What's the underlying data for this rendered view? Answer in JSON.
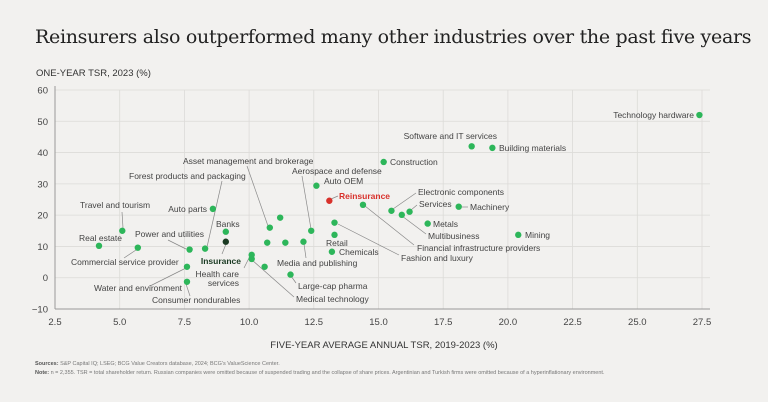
{
  "title": "Reinsurers also outperformed many other industries over the past five years",
  "footer": {
    "sources_label": "Sources:",
    "sources": "S&P Capital IQ; LSEG; BCG Value Creators database, 2024; BCG's ValueScience Center.",
    "note_label": "Note:",
    "note": "n = 2,355. TSR = total shareholder return. Russian companies were omitted because of suspended trading and the collapse of share prices. Argentinian and Turkish firms were omitted because of a hyperinflationary environment."
  },
  "chart_data": {
    "type": "scatter",
    "xlabel": "FIVE-YEAR AVERAGE ANNUAL TSR, 2019-2023 (%)",
    "ylabel": "ONE-YEAR TSR, 2023 (%)",
    "xlim": [
      2.5,
      27.5
    ],
    "ylim": [
      -10,
      60
    ],
    "xticks": [
      "2.5",
      "5.0",
      "7.5",
      "10.0",
      "12.5",
      "15.0",
      "17.5",
      "20.0",
      "22.5",
      "25.0",
      "27.5"
    ],
    "yticks": [
      "-10",
      "0",
      "10",
      "20",
      "30",
      "40",
      "50",
      "60"
    ],
    "grid": true,
    "colors": {
      "default": "#2db65a",
      "reinsurance": "#d8312b",
      "insurance": "#1a3a22"
    },
    "points": [
      {
        "label": "Technology hardware",
        "x": 27.4,
        "y": 52
      },
      {
        "label": "Software and IT services",
        "x": 18.6,
        "y": 42
      },
      {
        "label": "Building materials",
        "x": 19.4,
        "y": 41.5
      },
      {
        "label": "Construction",
        "x": 15.2,
        "y": 37
      },
      {
        "label": "Auto OEM",
        "x": 12.6,
        "y": 29.4
      },
      {
        "label": "Reinsurance",
        "x": 13.1,
        "y": 24.6,
        "highlight": "reinsurance"
      },
      {
        "label": "Financial infrastructure providers",
        "x": 14.4,
        "y": 23.3
      },
      {
        "label": "Electronic components",
        "x": 15.5,
        "y": 21.4
      },
      {
        "label": "Multibusiness",
        "x": 15.9,
        "y": 20.1
      },
      {
        "label": "Services",
        "x": 16.2,
        "y": 21.1
      },
      {
        "label": "Machinery",
        "x": 18.1,
        "y": 22.7
      },
      {
        "label": "Metals",
        "x": 16.9,
        "y": 17.3
      },
      {
        "label": "Mining",
        "x": 20.4,
        "y": 13.7
      },
      {
        "label": "Fashion and luxury",
        "x": 13.3,
        "y": 17.6
      },
      {
        "label": "Retail",
        "x": 13.3,
        "y": 13.7
      },
      {
        "label": "Chemicals",
        "x": 13.2,
        "y": 8.3
      },
      {
        "label": "Aerospace and defense",
        "x": 12.4,
        "y": 15
      },
      {
        "label": "Media and publishing",
        "x": 12.1,
        "y": 11.5
      },
      {
        "label": "",
        "x": 11.4,
        "y": 11.2
      },
      {
        "label": "",
        "x": 10.7,
        "y": 11.2
      },
      {
        "label": "",
        "x": 11.2,
        "y": 19.2
      },
      {
        "label": "Asset management and brokerage",
        "x": 10.8,
        "y": 16
      },
      {
        "label": "Large-cap pharma",
        "x": 11.6,
        "y": 1
      },
      {
        "label": "Medical technology",
        "x": 10.1,
        "y": 6
      },
      {
        "label": "Health care services",
        "label_lines": [
          "Health care",
          "services"
        ],
        "x": 10.1,
        "y": 7.3
      },
      {
        "label": "",
        "x": 10.6,
        "y": 3.5
      },
      {
        "label": "Banks",
        "x": 9.1,
        "y": 14.7
      },
      {
        "label": "Insurance",
        "x": 9.1,
        "y": 11.5,
        "highlight": "insurance"
      },
      {
        "label": "Forest products and packaging",
        "x": 8.3,
        "y": 9.3
      },
      {
        "label": "Auto parts",
        "x": 8.6,
        "y": 22
      },
      {
        "label": "Power and utilities",
        "x": 7.7,
        "y": 9
      },
      {
        "label": "Water and environment",
        "x": 7.6,
        "y": 3.5
      },
      {
        "label": "Consumer nondurables",
        "x": 7.6,
        "y": -1.3
      },
      {
        "label": "Commercial service provider",
        "x": 5.7,
        "y": 9.6
      },
      {
        "label": "Travel and tourism",
        "x": 5.1,
        "y": 15
      },
      {
        "label": "Real estate",
        "x": 4.2,
        "y": 10.2
      }
    ]
  }
}
